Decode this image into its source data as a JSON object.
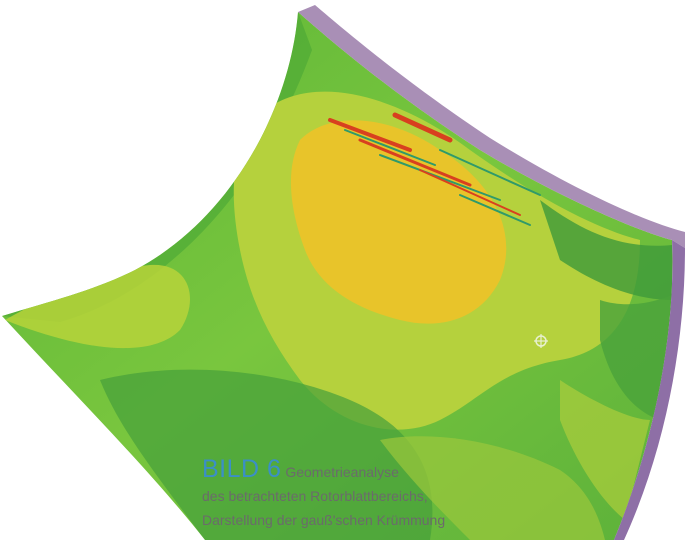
{
  "figure": {
    "image_kind": "rotor-blade-surface-render"
  },
  "caption": {
    "label": "BILD 6",
    "line1": "Geometrieanalyse",
    "line2": "des betrachteten Rotorblattbereichs,",
    "line3": "Darstellung der gauß'schen Krümmung"
  },
  "colors": {
    "caption_label": "#3b8fc6",
    "caption_text": "#6b6b6b",
    "edge_purple": "#a98fb6",
    "surface_green": "#6cbf3a"
  }
}
